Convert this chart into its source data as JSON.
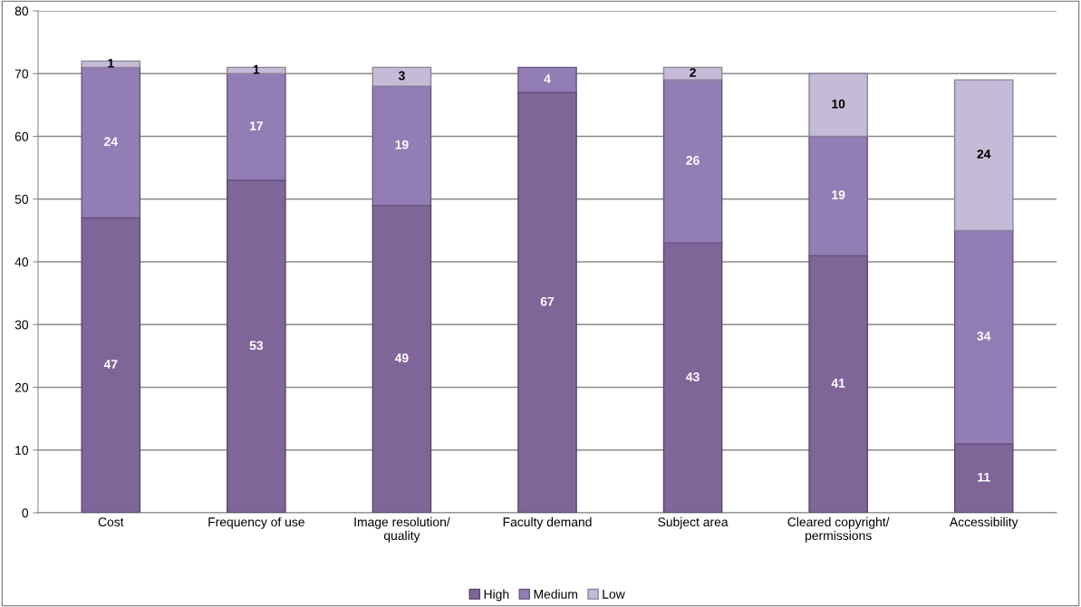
{
  "chart_data": {
    "type": "bar",
    "stacked": true,
    "categories": [
      "Cost",
      "Frequency of use",
      "Image resolution/\nquality",
      "Faculty demand",
      "Subject area",
      "Cleared copyright/\npermissions",
      "Accessibility"
    ],
    "series": [
      {
        "name": "High",
        "color": "#7f6699",
        "values": [
          47,
          53,
          49,
          67,
          43,
          41,
          11
        ]
      },
      {
        "name": "Medium",
        "color": "#937db5",
        "values": [
          24,
          17,
          19,
          4,
          26,
          19,
          34
        ]
      },
      {
        "name": "Low",
        "color": "#c6bbd7",
        "values": [
          1,
          1,
          3,
          null,
          2,
          10,
          24
        ]
      }
    ],
    "ylim": [
      0,
      80
    ],
    "yticks": [
      0,
      10,
      20,
      30,
      40,
      50,
      60,
      70,
      80
    ],
    "grid": "y",
    "legend": "bottom",
    "data_labels": true
  }
}
